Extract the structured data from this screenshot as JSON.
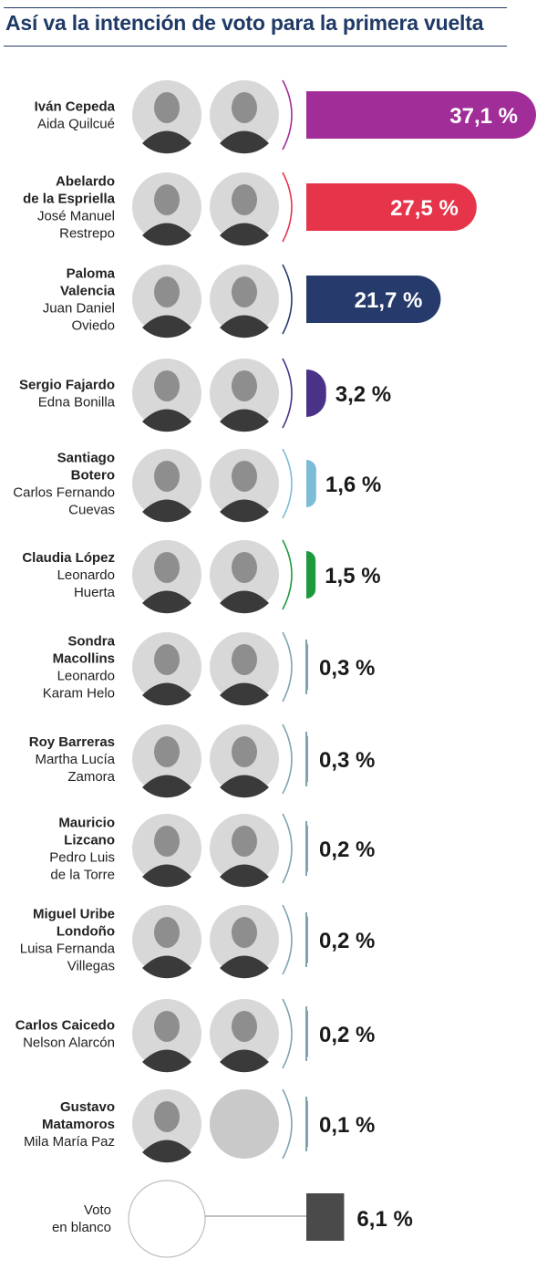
{
  "header": {
    "title": "Así va la intención de voto para la primera vuelta"
  },
  "chart_data": {
    "type": "bar",
    "title": "Así va la intención de voto para la primera vuelta",
    "unit": "%",
    "rows": [
      {
        "candidate": [
          "Iván Cepeda"
        ],
        "running_mate": [
          "Aida Quilcué"
        ],
        "value": 37.1,
        "label": "37,1 %",
        "color": "#a12d99"
      },
      {
        "candidate": [
          "Abelardo",
          "de la Espriella"
        ],
        "running_mate": [
          "José Manuel",
          "Restrepo"
        ],
        "value": 27.5,
        "label": "27,5 %",
        "color": "#e6344b"
      },
      {
        "candidate": [
          "Paloma",
          "Valencia"
        ],
        "running_mate": [
          "Juan Daniel",
          "Oviedo"
        ],
        "value": 21.7,
        "label": "21,7 %",
        "color": "#263a6b"
      },
      {
        "candidate": [
          "Sergio Fajardo"
        ],
        "running_mate": [
          "Edna Bonilla"
        ],
        "value": 3.2,
        "label": "3,2 %",
        "color": "#4a3289"
      },
      {
        "candidate": [
          "Santiago",
          "Botero"
        ],
        "running_mate": [
          "Carlos Fernando",
          "Cuevas"
        ],
        "value": 1.6,
        "label": "1,6 %",
        "color": "#7cbcd7"
      },
      {
        "candidate": [
          "Claudia López"
        ],
        "running_mate": [
          "Leonardo",
          "Huerta"
        ],
        "value": 1.5,
        "label": "1,5 %",
        "color": "#1c9a3d"
      },
      {
        "candidate": [
          "Sondra",
          "Macollins"
        ],
        "running_mate": [
          "Leonardo",
          "Karam Helo"
        ],
        "value": 0.3,
        "label": "0,3 %",
        "color": "#7fa3b1"
      },
      {
        "candidate": [
          "Roy Barreras"
        ],
        "running_mate": [
          "Martha Lucía",
          "Zamora"
        ],
        "value": 0.3,
        "label": "0,3 %",
        "color": "#7fa3b1"
      },
      {
        "candidate": [
          "Mauricio",
          "Lizcano"
        ],
        "running_mate": [
          "Pedro Luis",
          "de la Torre"
        ],
        "value": 0.2,
        "label": "0,2 %",
        "color": "#7fa3b1"
      },
      {
        "candidate": [
          "Miguel Uribe",
          "Londoño"
        ],
        "running_mate": [
          "Luisa Fernanda",
          "Villegas"
        ],
        "value": 0.2,
        "label": "0,2 %",
        "color": "#7fa3b1"
      },
      {
        "candidate": [
          "Carlos Caicedo"
        ],
        "running_mate": [
          "Nelson Alarcón"
        ],
        "value": 0.2,
        "label": "0,2 %",
        "color": "#7fa3b1"
      },
      {
        "candidate": [
          "Gustavo",
          "Matamoros"
        ],
        "running_mate": [
          "Mila María Paz"
        ],
        "value": 0.1,
        "label": "0,1 %",
        "color": "#7fa3b1"
      }
    ],
    "blank_vote": {
      "label": [
        "Voto",
        "en blanco"
      ],
      "value": 6.1,
      "value_label": "6,1 %",
      "color": "#4a4a4a"
    }
  }
}
